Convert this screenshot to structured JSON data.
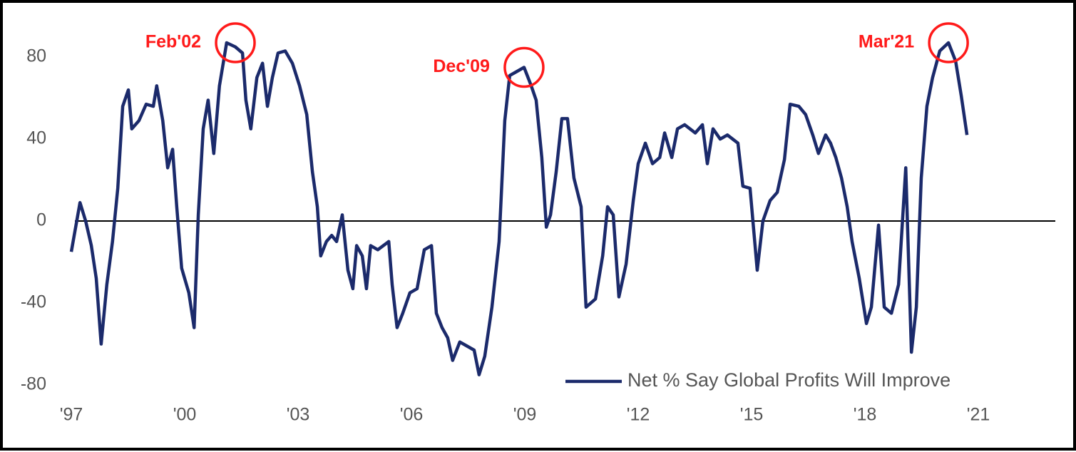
{
  "chart_data": {
    "type": "line",
    "x": [
      1997.0,
      1997.23,
      1997.38,
      1997.53,
      1997.66,
      1997.79,
      1997.94,
      1998.09,
      1998.23,
      1998.36,
      1998.51,
      1998.6,
      1998.79,
      1998.98,
      1999.17,
      1999.26,
      1999.42,
      1999.55,
      1999.68,
      1999.79,
      1999.92,
      2000.11,
      2000.25,
      2000.36,
      2000.49,
      2000.62,
      2000.77,
      2000.92,
      2001.11,
      2001.34,
      2001.53,
      2001.62,
      2001.75,
      2001.91,
      2002.06,
      2002.19,
      2002.32,
      2002.47,
      2002.66,
      2002.85,
      2003.04,
      2003.23,
      2003.38,
      2003.51,
      2003.6,
      2003.75,
      2003.89,
      2004.02,
      2004.17,
      2004.32,
      2004.45,
      2004.55,
      2004.7,
      2004.81,
      2004.92,
      2005.11,
      2005.4,
      2005.49,
      2005.62,
      2005.77,
      2005.96,
      2006.15,
      2006.34,
      2006.53,
      2006.66,
      2006.81,
      2006.96,
      2007.09,
      2007.28,
      2007.47,
      2007.66,
      2007.79,
      2007.94,
      2008.13,
      2008.32,
      2008.47,
      2008.6,
      2008.79,
      2008.98,
      2009.17,
      2009.3,
      2009.45,
      2009.57,
      2009.68,
      2009.83,
      2009.98,
      2010.13,
      2010.3,
      2010.49,
      2010.62,
      2010.87,
      2011.06,
      2011.19,
      2011.34,
      2011.49,
      2011.68,
      2011.87,
      2012.0,
      2012.19,
      2012.38,
      2012.57,
      2012.7,
      2012.89,
      2013.04,
      2013.23,
      2013.51,
      2013.7,
      2013.83,
      2013.98,
      2014.17,
      2014.36,
      2014.64,
      2014.77,
      2014.96,
      2015.15,
      2015.3,
      2015.49,
      2015.68,
      2015.87,
      2016.02,
      2016.25,
      2016.43,
      2016.62,
      2016.77,
      2016.96,
      2017.09,
      2017.23,
      2017.38,
      2017.53,
      2017.66,
      2017.85,
      2018.04,
      2018.17,
      2018.36,
      2018.51,
      2018.7,
      2018.89,
      2019.08,
      2019.23,
      2019.36,
      2019.49,
      2019.64,
      2019.79,
      2019.98,
      2020.21,
      2020.4,
      2020.55,
      2020.7
    ],
    "series": [
      {
        "name": "Net % Say Global Profits Will Improve",
        "color": "#1b2a6b",
        "values": [
          -15,
          9,
          0,
          -12,
          -28,
          -60,
          -31,
          -10,
          16,
          56,
          64,
          45,
          49,
          57,
          56,
          66,
          49,
          26,
          35,
          7,
          -23,
          -35,
          -52,
          3,
          45,
          59,
          33,
          66,
          87,
          85,
          82,
          59,
          45,
          70,
          77,
          56,
          70,
          82,
          83,
          77,
          66,
          52,
          24,
          7,
          -17,
          -10,
          -7,
          -10,
          3,
          -24,
          -33,
          -12,
          -17,
          -33,
          -12,
          -14,
          -10,
          -31,
          -52,
          -45,
          -35,
          -33,
          -14,
          -12,
          -45,
          -52,
          -57,
          -68,
          -59,
          -61,
          -63,
          -75,
          -66,
          -42,
          -10,
          49,
          71,
          73,
          75,
          66,
          59,
          31,
          -3,
          3,
          24,
          50,
          50,
          21,
          7,
          -42,
          -38,
          -17,
          7,
          3,
          -37,
          -21,
          10,
          28,
          38,
          28,
          31,
          43,
          31,
          45,
          47,
          43,
          47,
          28,
          45,
          40,
          42,
          38,
          17,
          16,
          -24,
          0,
          10,
          14,
          30,
          57,
          56,
          52,
          42,
          33,
          42,
          38,
          31,
          21,
          7,
          -10,
          -28,
          -50,
          -42,
          -2,
          -42,
          -45,
          -31,
          26,
          -64,
          -42,
          21,
          56,
          70,
          83,
          87,
          78,
          61,
          42
        ]
      }
    ],
    "xlim": [
      1997,
      2023
    ],
    "xticks": [
      {
        "value": 1997,
        "label": "'97"
      },
      {
        "value": 2000,
        "label": "'00"
      },
      {
        "value": 2003,
        "label": "'03"
      },
      {
        "value": 2006,
        "label": "'06"
      },
      {
        "value": 2009,
        "label": "'09"
      },
      {
        "value": 2012,
        "label": "'12"
      },
      {
        "value": 2015,
        "label": "'15"
      },
      {
        "value": 2018,
        "label": "'18"
      },
      {
        "value": 2021,
        "label": "'21"
      }
    ],
    "ylim": [
      -90,
      95
    ],
    "yticks": [
      -80,
      -40,
      0,
      40,
      80
    ],
    "grid": false,
    "legend": "lower right",
    "annotations": [
      {
        "text": "Feb'02",
        "x": 2001.34,
        "y": 87
      },
      {
        "text": "Dec'09",
        "x": 2008.98,
        "y": 75
      },
      {
        "text": "Mar'21",
        "x": 2020.21,
        "y": 87
      }
    ],
    "annotation_color": "#ff1a1a"
  }
}
